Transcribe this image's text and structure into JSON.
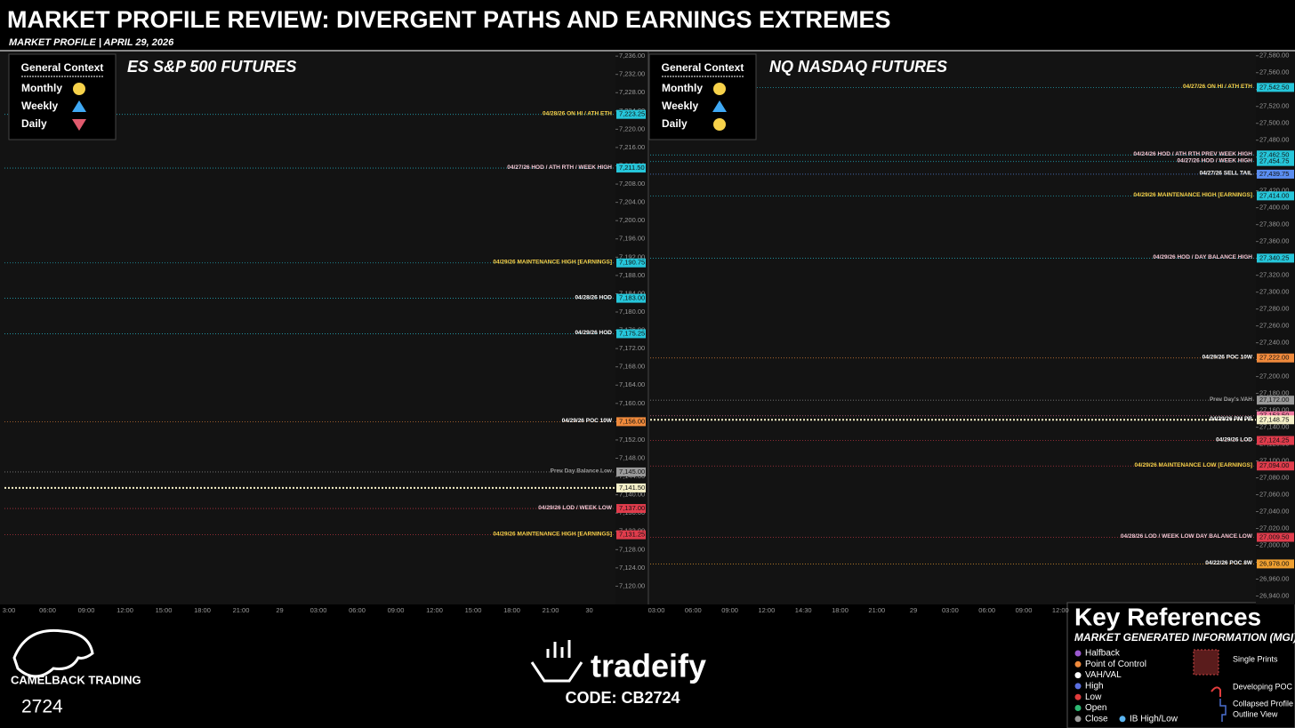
{
  "title": "MARKET PROFILE REVIEW: DIVERGENT PATHS AND EARNINGS EXTREMES",
  "subtitle": "MARKET PROFILE | APRIL 29, 2026",
  "chart_data": [
    {
      "type": "levels",
      "title": "ES S&P 500 FUTURES",
      "ylim": [
        7116,
        7237
      ],
      "yticks": [
        {
          "value": 7120,
          "label": "7,120.00"
        },
        {
          "value": 7124,
          "label": "7,124.00"
        },
        {
          "value": 7128,
          "label": "7,128.00"
        },
        {
          "value": 7132,
          "label": "7,132.00"
        },
        {
          "value": 7136,
          "label": "7,136.00"
        },
        {
          "value": 7140,
          "label": "7,140.00"
        },
        {
          "value": 7144,
          "label": "7,144.00"
        },
        {
          "value": 7148,
          "label": "7,148.00"
        },
        {
          "value": 7152,
          "label": "7,152.00"
        },
        {
          "value": 7156,
          "label": "7,156.00"
        },
        {
          "value": 7160,
          "label": "7,160.00"
        },
        {
          "value": 7164,
          "label": "7,164.00"
        },
        {
          "value": 7168,
          "label": "7,168.00"
        },
        {
          "value": 7172,
          "label": "7,172.00"
        },
        {
          "value": 7176,
          "label": "7,176.00"
        },
        {
          "value": 7180,
          "label": "7,180.00"
        },
        {
          "value": 7184,
          "label": "7,184.00"
        },
        {
          "value": 7188,
          "label": "7,188.00"
        },
        {
          "value": 7192,
          "label": "7,192.00"
        },
        {
          "value": 7196,
          "label": "7,196.00"
        },
        {
          "value": 7200,
          "label": "7,200.00"
        },
        {
          "value": 7204,
          "label": "7,204.00"
        },
        {
          "value": 7208,
          "label": "7,208.00"
        },
        {
          "value": 7212,
          "label": "7,212.00"
        },
        {
          "value": 7216,
          "label": "7,216.00"
        },
        {
          "value": 7220,
          "label": "7,220.00"
        },
        {
          "value": 7224,
          "label": "7,224.00"
        },
        {
          "value": 7228,
          "label": "7,228.00"
        },
        {
          "value": 7232,
          "label": "7,232.00"
        },
        {
          "value": 7236,
          "label": "7,236.00"
        }
      ],
      "categories": [
        "3:00",
        "06:00",
        "09:00",
        "12:00",
        "15:00",
        "18:00",
        "21:00",
        "29",
        "03:00",
        "06:00",
        "09:00",
        "12:00",
        "15:00",
        "18:00",
        "21:00",
        "30"
      ],
      "context": {
        "title": "General Context",
        "items": [
          {
            "name": "Monthly",
            "shape": "circle",
            "color": "#f7d24a"
          },
          {
            "name": "Weekly",
            "shape": "triangle-up",
            "color": "#3fa9f5"
          },
          {
            "name": "Daily",
            "shape": "triangle-down",
            "color": "#e05a6e"
          }
        ]
      },
      "levels": [
        {
          "name": "04/28/26 ON HI / ATH ETH",
          "value": 7223.25,
          "value_label": "7,223.25",
          "color": "#26c6da",
          "label_color": "#f7d24a"
        },
        {
          "name": "04/27/26 HOD / ATH RTH / WEEK HIGH",
          "value": 7211.5,
          "value_label": "7,211.50",
          "color": "#26c6da",
          "label_color": "#f3c6d3"
        },
        {
          "name": "04/29/26 MAINTENANCE HIGH [EARNINGS]",
          "value": 7190.75,
          "value_label": "7,190.75",
          "color": "#26c6da",
          "label_color": "#f7d24a"
        },
        {
          "name": "04/28/26 HOD",
          "value": 7183,
          "value_label": "7,183.00",
          "color": "#26c6da",
          "label_color": "#ffffff"
        },
        {
          "name": "04/29/26 HOD",
          "value": 7175.25,
          "value_label": "7,175.25",
          "color": "#26c6da",
          "label_color": "#ffffff"
        },
        {
          "name": "04/29/26 POC 10W",
          "value": 7156,
          "value_label": "7,156.00",
          "color": "#f08a3c",
          "label_color": "#ffffff"
        },
        {
          "name": "Prev Day Balance Low",
          "value": 7145,
          "value_label": "7,145.00",
          "color": "#9a9a9a",
          "label_color": "#9a9a9a"
        },
        {
          "value": 7141.5,
          "value_label": "7,141.50",
          "color": "#f5f0c8",
          "label_color": "#ffffff"
        },
        {
          "name": "04/29/26 LOD / WEEK LOW",
          "value": 7137,
          "value_label": "7,137.00",
          "color": "#e03c4c",
          "label_color": "#f3c6d3"
        },
        {
          "name": "04/29/26 MAINTENANCE HIGH [EARNINGS]",
          "value": 7131.25,
          "value_label": "7,131.25",
          "color": "#e03c4c",
          "label_color": "#f7d24a"
        }
      ]
    },
    {
      "type": "levels",
      "title": "NQ NASDAQ FUTURES",
      "ylim": [
        26930,
        27585
      ],
      "yticks": [
        {
          "value": 26940,
          "label": "26,940.00"
        },
        {
          "value": 26960,
          "label": "26,960.00"
        },
        {
          "value": 26980,
          "label": "26,980.00"
        },
        {
          "value": 27000,
          "label": "27,000.00"
        },
        {
          "value": 27020,
          "label": "27,020.00"
        },
        {
          "value": 27040,
          "label": "27,040.00"
        },
        {
          "value": 27060,
          "label": "27,060.00"
        },
        {
          "value": 27080,
          "label": "27,080.00"
        },
        {
          "value": 27100,
          "label": "27,100.00"
        },
        {
          "value": 27120,
          "label": "27,120.00"
        },
        {
          "value": 27140,
          "label": "27,140.00"
        },
        {
          "value": 27160,
          "label": "27,160.00"
        },
        {
          "value": 27180,
          "label": "27,180.00"
        },
        {
          "value": 27200,
          "label": "27,200.00"
        },
        {
          "value": 27220,
          "label": "27,220.00"
        },
        {
          "value": 27240,
          "label": "27,240.00"
        },
        {
          "value": 27260,
          "label": "27,260.00"
        },
        {
          "value": 27280,
          "label": "27,280.00"
        },
        {
          "value": 27300,
          "label": "27,300.00"
        },
        {
          "value": 27320,
          "label": "27,320.00"
        },
        {
          "value": 27340,
          "label": "27,340.00"
        },
        {
          "value": 27360,
          "label": "27,360.00"
        },
        {
          "value": 27380,
          "label": "27,380.00"
        },
        {
          "value": 27400,
          "label": "27,400.00"
        },
        {
          "value": 27420,
          "label": "27,420.00"
        },
        {
          "value": 27440,
          "label": "27,440.00"
        },
        {
          "value": 27460,
          "label": "27,460.00"
        },
        {
          "value": 27480,
          "label": "27,480.00"
        },
        {
          "value": 27500,
          "label": "27,500.00"
        },
        {
          "value": 27520,
          "label": "27,520.00"
        },
        {
          "value": 27540,
          "label": "27,540.00"
        },
        {
          "value": 27560,
          "label": "27,560.00"
        },
        {
          "value": 27580,
          "label": "27,580.00"
        }
      ],
      "categories": [
        "03:00",
        "06:00",
        "09:00",
        "12:00",
        "14:30",
        "18:00",
        "21:00",
        "29",
        "03:00",
        "06:00",
        "09:00",
        "12:00"
      ],
      "context": {
        "title": "General Context",
        "items": [
          {
            "name": "Monthly",
            "shape": "circle",
            "color": "#f7d24a"
          },
          {
            "name": "Weekly",
            "shape": "triangle-up",
            "color": "#3fa9f5"
          },
          {
            "name": "Daily",
            "shape": "circle",
            "color": "#f7d24a"
          }
        ]
      },
      "levels": [
        {
          "name": "04/27/26 ON HI / ATH ETH",
          "value": 27542.5,
          "value_label": "27,542.50",
          "color": "#26c6da",
          "label_color": "#f7d24a"
        },
        {
          "name": "04/24/26 HOD / ATH RTH PREV WEEK HIGH",
          "value": 27462.5,
          "value_label": "27,462.50",
          "color": "#26c6da",
          "label_color": "#f3c6d3"
        },
        {
          "name": "04/27/26 HOD / WEEK HIGH",
          "value": 27454.75,
          "value_label": "27,454.75",
          "color": "#26c6da",
          "label_color": "#f3c6d3"
        },
        {
          "name": "04/27/26 SELL TAIL",
          "value": 27439.75,
          "value_label": "27,439.75",
          "color": "#5a8df0",
          "label_color": "#ffffff"
        },
        {
          "name": "04/29/26 MAINTENANCE HIGH [EARNINGS]",
          "value": 27414,
          "value_label": "27,414.00",
          "color": "#26c6da",
          "label_color": "#f7d24a"
        },
        {
          "name": "04/29/26 HOD / DAY BALANCE HIGH",
          "value": 27340.25,
          "value_label": "27,340.25",
          "color": "#26c6da",
          "label_color": "#f3c6d3"
        },
        {
          "name": "04/29/26 POC 10W",
          "value": 27222,
          "value_label": "27,222.00",
          "color": "#f08a3c",
          "label_color": "#ffffff"
        },
        {
          "name": "Prev Day's VAH",
          "value": 27172,
          "value_label": "27,172.00",
          "color": "#9a9a9a",
          "label_color": "#9a9a9a"
        },
        {
          "value": 27153.5,
          "value_label": "27,153.50",
          "color": "#f07aa0",
          "label_color": "#ffffff"
        },
        {
          "name": "04/29/26 PM PB",
          "value": 27148.75,
          "value_label": "27,148.75",
          "color": "#f5f0c8",
          "label_color": "#ffffff"
        },
        {
          "name": "04/29/26 LOD",
          "value": 27124.25,
          "value_label": "27,124.25",
          "color": "#e03c4c",
          "label_color": "#ffffff"
        },
        {
          "name": "04/29/26 MAINTENANCE LOW [EARNINGS]",
          "value": 27094,
          "value_label": "27,094.00",
          "color": "#e03c4c",
          "label_color": "#f7d24a"
        },
        {
          "name": "04/28/26 LOD / WEEK LOW DAY BALANCE LOW",
          "value": 27009.5,
          "value_label": "27,009.50",
          "color": "#e03c4c",
          "label_color": "#f3c6d3"
        },
        {
          "name": "04/22/26 POC 8W",
          "value": 26978,
          "value_label": "26,978.00",
          "color": "#f0a030",
          "label_color": "#ffffff"
        }
      ]
    }
  ],
  "key": {
    "title": "Key  References",
    "subtitle": "MARKET GENERATED INFORMATION (MGI)",
    "items": [
      {
        "name": "Halfback",
        "color": "#9b59d0"
      },
      {
        "name": "Point of Control",
        "color": "#f08a3c"
      },
      {
        "name": "VAH/VAL",
        "color": "#ffffff"
      },
      {
        "name": "High",
        "color": "#5a6fe0"
      },
      {
        "name": "Low",
        "color": "#e03c3c"
      },
      {
        "name": "Open",
        "color": "#2eb872"
      },
      {
        "name": "Close",
        "color": "#999999"
      },
      {
        "name": "IB High/Low",
        "color": "#5ab4f0"
      }
    ],
    "visuals": [
      "Single Prints",
      "Developing POC",
      "Collapsed Profile Outline View"
    ]
  },
  "brand": {
    "left_name": "CAMELBACK TRADING",
    "left_number": "2724",
    "center_name": "tradeify",
    "code": "CODE: CB2724"
  }
}
